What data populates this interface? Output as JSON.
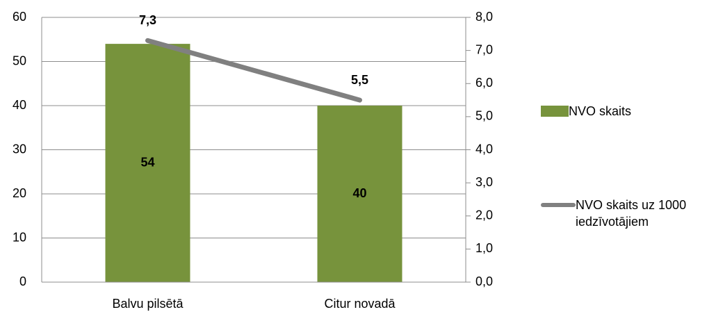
{
  "chart_data": {
    "type": "bar",
    "categories": [
      "Balvu pilsētā",
      "Citur novadā"
    ],
    "series": [
      {
        "name": "NVO skaits",
        "color": "#77933c",
        "type": "bar",
        "values": [
          54,
          40
        ]
      },
      {
        "name": "NVO skaits uz 1000 iedzīvotājiem",
        "color": "#808080",
        "type": "line",
        "axis": "y2",
        "values": [
          7.3,
          5.5
        ],
        "value_labels": [
          "7,3",
          "5,5"
        ]
      }
    ],
    "ylim": [
      0,
      60
    ],
    "yticks": [
      0,
      10,
      20,
      30,
      40,
      50,
      60
    ],
    "y2lim": [
      0,
      8
    ],
    "y2ticks": [
      {
        "value": 0,
        "label": "0,0"
      },
      {
        "value": 1,
        "label": "1,0"
      },
      {
        "value": 2,
        "label": "2,0"
      },
      {
        "value": 3,
        "label": "3,0"
      },
      {
        "value": 4,
        "label": "4,0"
      },
      {
        "value": 5,
        "label": "5,0"
      },
      {
        "value": 6,
        "label": "6,0"
      },
      {
        "value": 7,
        "label": "7,0"
      },
      {
        "value": 8,
        "label": "8,0"
      }
    ],
    "grid": true,
    "legend": "right"
  }
}
